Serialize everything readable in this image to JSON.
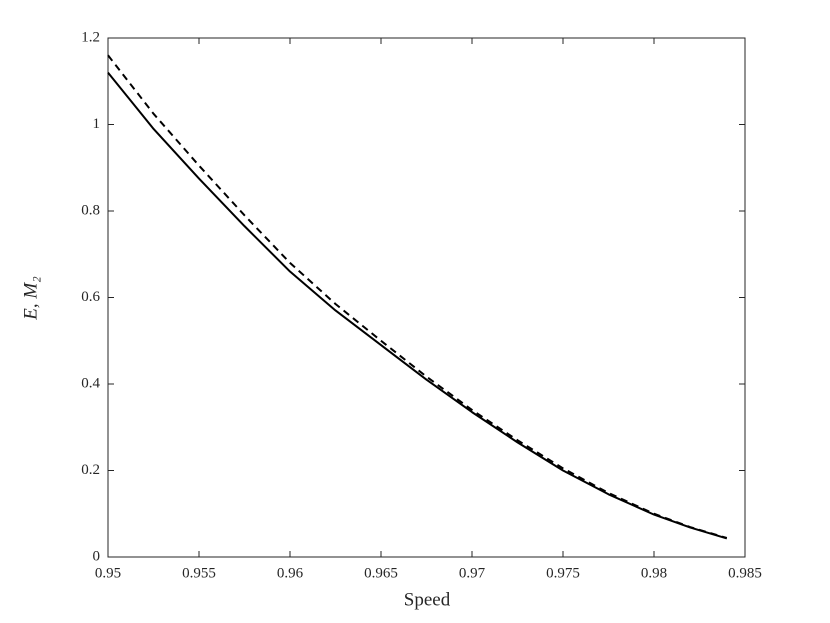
{
  "chart_data": {
    "type": "line",
    "xlabel": "Speed",
    "ylabel": "E, M₂",
    "x": [
      0.95,
      0.9525,
      0.955,
      0.9575,
      0.96,
      0.9625,
      0.965,
      0.9675,
      0.97,
      0.9725,
      0.975,
      0.9775,
      0.98,
      0.982,
      0.984
    ],
    "series": [
      {
        "color": "#000000",
        "style": "solid",
        "values": [
          1.12,
          0.99,
          0.875,
          0.765,
          0.66,
          0.57,
          0.49,
          0.41,
          0.335,
          0.265,
          0.2,
          0.145,
          0.098,
          0.068,
          0.043
        ]
      },
      {
        "color": "#000000",
        "style": "dashed",
        "values": [
          1.16,
          1.025,
          0.905,
          0.79,
          0.68,
          0.585,
          0.5,
          0.417,
          0.34,
          0.27,
          0.205,
          0.148,
          0.1,
          0.069,
          0.044
        ]
      }
    ],
    "xlim": [
      0.95,
      0.985
    ],
    "xticks": [
      0.95,
      0.955,
      0.96,
      0.965,
      0.97,
      0.975,
      0.98,
      0.985
    ],
    "ylim": [
      0,
      1.2
    ],
    "yticks": [
      0,
      0.2,
      0.4,
      0.6,
      0.8,
      1,
      1.2
    ],
    "grid": false
  }
}
